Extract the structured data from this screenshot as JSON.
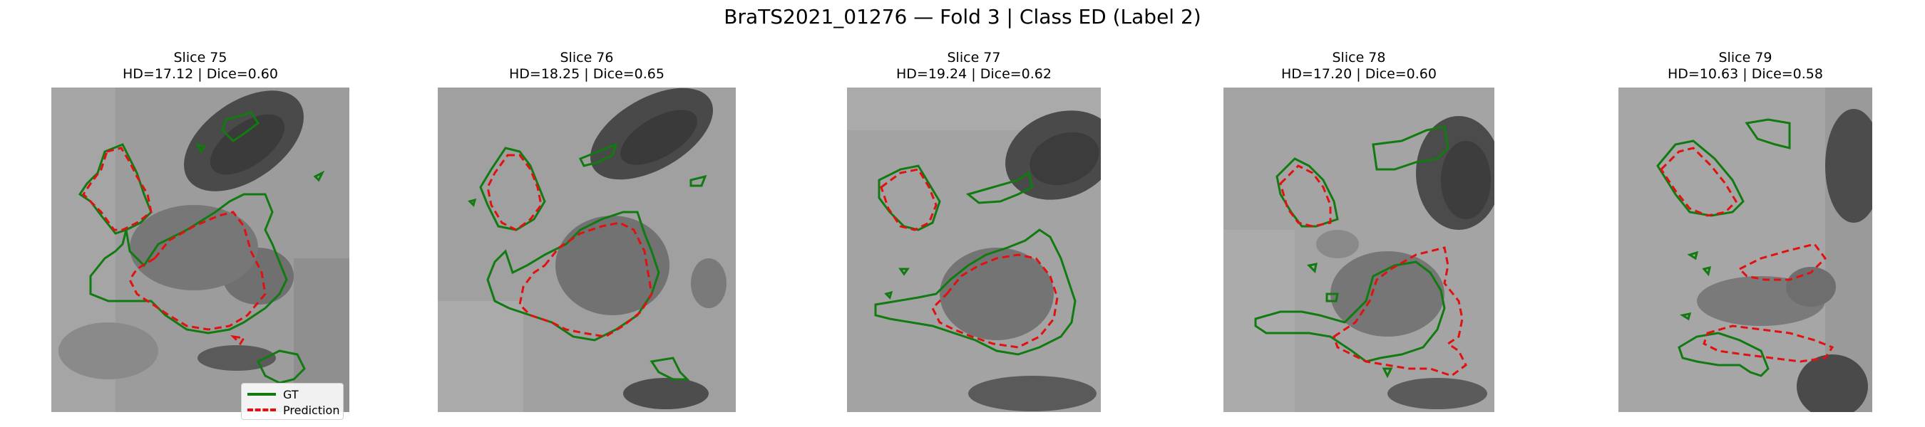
{
  "suptitle": "BraTS2021_01276 — Fold 3 | Class ED (Label 2)",
  "legend": {
    "gt_label": "GT",
    "pred_label": "Prediction",
    "gt_color": "#117a11",
    "pred_color": "#e31010"
  },
  "panels": [
    {
      "slice": "Slice 75",
      "metrics": "HD=17.12 | Dice=0.60"
    },
    {
      "slice": "Slice 76",
      "metrics": "HD=18.25 | Dice=0.65"
    },
    {
      "slice": "Slice 77",
      "metrics": "HD=19.24 | Dice=0.62"
    },
    {
      "slice": "Slice 78",
      "metrics": "HD=17.20 | Dice=0.60"
    },
    {
      "slice": "Slice 79",
      "metrics": "HD=10.63 | Dice=0.58"
    }
  ]
}
